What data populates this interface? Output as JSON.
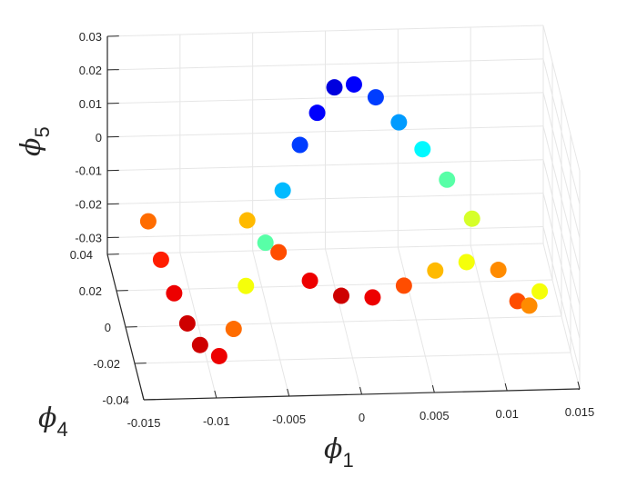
{
  "chart_data": {
    "type": "scatter",
    "title": "",
    "xlabel": "φ1",
    "ylabel": "φ4",
    "zlabel": "φ5",
    "axis_labels": {
      "x": {
        "symbol": "ϕ",
        "sub": "1"
      },
      "y": {
        "symbol": "ϕ",
        "sub": "4"
      },
      "z": {
        "symbol": "ϕ",
        "sub": "5"
      }
    },
    "xlim": [
      -0.015,
      0.015
    ],
    "ylim": [
      -0.04,
      0.04
    ],
    "zlim": [
      -0.035,
      0.03
    ],
    "xticks": [
      "-0.015",
      "-0.01",
      "-0.005",
      "0",
      "0.005",
      "0.01",
      "0.015"
    ],
    "yticks": [
      "-0.04",
      "-0.02",
      "0",
      "0.02",
      "0.04"
    ],
    "zticks": [
      "-0.03",
      "-0.02",
      "-0.01",
      "0",
      "0.01",
      "0.02",
      "0.03"
    ],
    "grid": true,
    "colormap": "jet",
    "color_by": "φ5 / position along the saddle surface",
    "description_points": "dense 3-D point cloud forming a saddle-shaped band; highest points near the middle-back, lowest near the front center, rising ends at φ1 ≈ ±0.012",
    "series": [
      {
        "points": [
          [
            -0.0125,
            0.03,
            -0.02
          ],
          [
            -0.012,
            0.018,
            -0.025
          ],
          [
            -0.0115,
            0.005,
            -0.028
          ],
          [
            -0.011,
            -0.008,
            -0.03
          ],
          [
            -0.0105,
            -0.02,
            -0.03
          ],
          [
            -0.0095,
            -0.03,
            -0.028
          ],
          [
            -0.0085,
            -0.03,
            -0.02
          ],
          [
            -0.0075,
            -0.025,
            -0.01
          ],
          [
            -0.006,
            -0.02,
            0.0
          ],
          [
            -0.0045,
            -0.01,
            0.01
          ],
          [
            -0.003,
            0.0,
            0.018
          ],
          [
            -0.0015,
            0.01,
            0.022
          ],
          [
            0.0,
            0.02,
            0.024
          ],
          [
            0.0015,
            0.025,
            0.022
          ],
          [
            0.003,
            0.025,
            0.018
          ],
          [
            0.0045,
            0.022,
            0.012
          ],
          [
            0.006,
            0.018,
            0.006
          ],
          [
            0.0075,
            0.012,
            0.0
          ],
          [
            0.009,
            0.005,
            -0.008
          ],
          [
            0.0105,
            -0.005,
            -0.018
          ],
          [
            0.0115,
            -0.015,
            -0.022
          ],
          [
            0.012,
            -0.025,
            -0.018
          ],
          [
            0.0125,
            -0.032,
            -0.01
          ],
          [
            -0.006,
            0.02,
            -0.015
          ],
          [
            -0.004,
            0.015,
            -0.022
          ],
          [
            -0.002,
            0.01,
            -0.028
          ],
          [
            0.0,
            0.005,
            -0.03
          ],
          [
            0.002,
            0.0,
            -0.028
          ],
          [
            0.004,
            -0.005,
            -0.022
          ],
          [
            0.006,
            -0.01,
            -0.015
          ],
          [
            0.008,
            -0.015,
            -0.01
          ]
        ]
      }
    ]
  }
}
